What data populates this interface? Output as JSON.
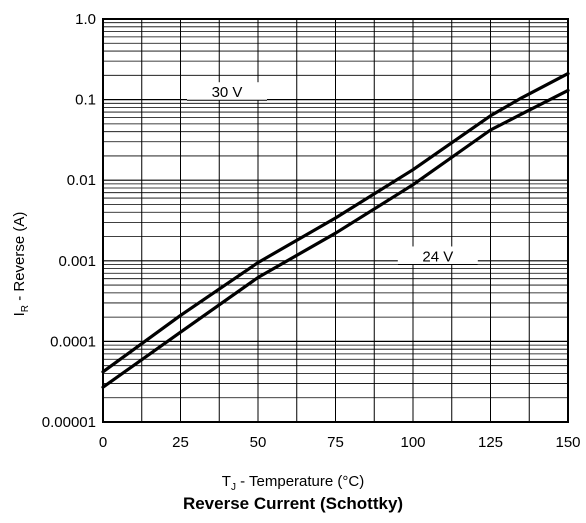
{
  "chart_data": {
    "type": "line",
    "title": "Reverse Current (Schottky)",
    "xlabel": {
      "prefix": "T",
      "sub": "J",
      "rest": " - Temperature (°C)"
    },
    "ylabel": {
      "prefix": "I",
      "sub": "R",
      "rest": " - Reverse (A)"
    },
    "xlim": [
      0,
      150
    ],
    "ylim": [
      1e-05,
      1.0
    ],
    "yscale": "log",
    "grid": true,
    "x_ticks": [
      0,
      25,
      50,
      75,
      100,
      125,
      150
    ],
    "x_tick_labels": [
      "0",
      "25",
      "50",
      "75",
      "100",
      "125",
      "150"
    ],
    "y_ticks": [
      1e-05,
      0.0001,
      0.001,
      0.01,
      0.1,
      1.0
    ],
    "y_tick_labels": [
      "0.00001",
      "0.0001",
      "0.001",
      "0.01",
      "0.1",
      "1.0"
    ],
    "series": [
      {
        "name": "30 V",
        "x": [
          0,
          25,
          50,
          75,
          100,
          125,
          135,
          150
        ],
        "y": [
          4.2e-05,
          0.00021,
          0.00095,
          0.0034,
          0.0135,
          0.063,
          0.105,
          0.21
        ]
      },
      {
        "name": "24 V",
        "x": [
          0,
          25,
          50,
          75,
          100,
          125,
          135,
          150
        ],
        "y": [
          2.7e-05,
          0.00013,
          0.00062,
          0.0022,
          0.0088,
          0.042,
          0.066,
          0.13
        ]
      }
    ],
    "annotations": [
      {
        "text": "30 V",
        "x": 40,
        "y": 0.12
      },
      {
        "text": "24 V",
        "x": 108,
        "y": 0.0011
      }
    ]
  }
}
